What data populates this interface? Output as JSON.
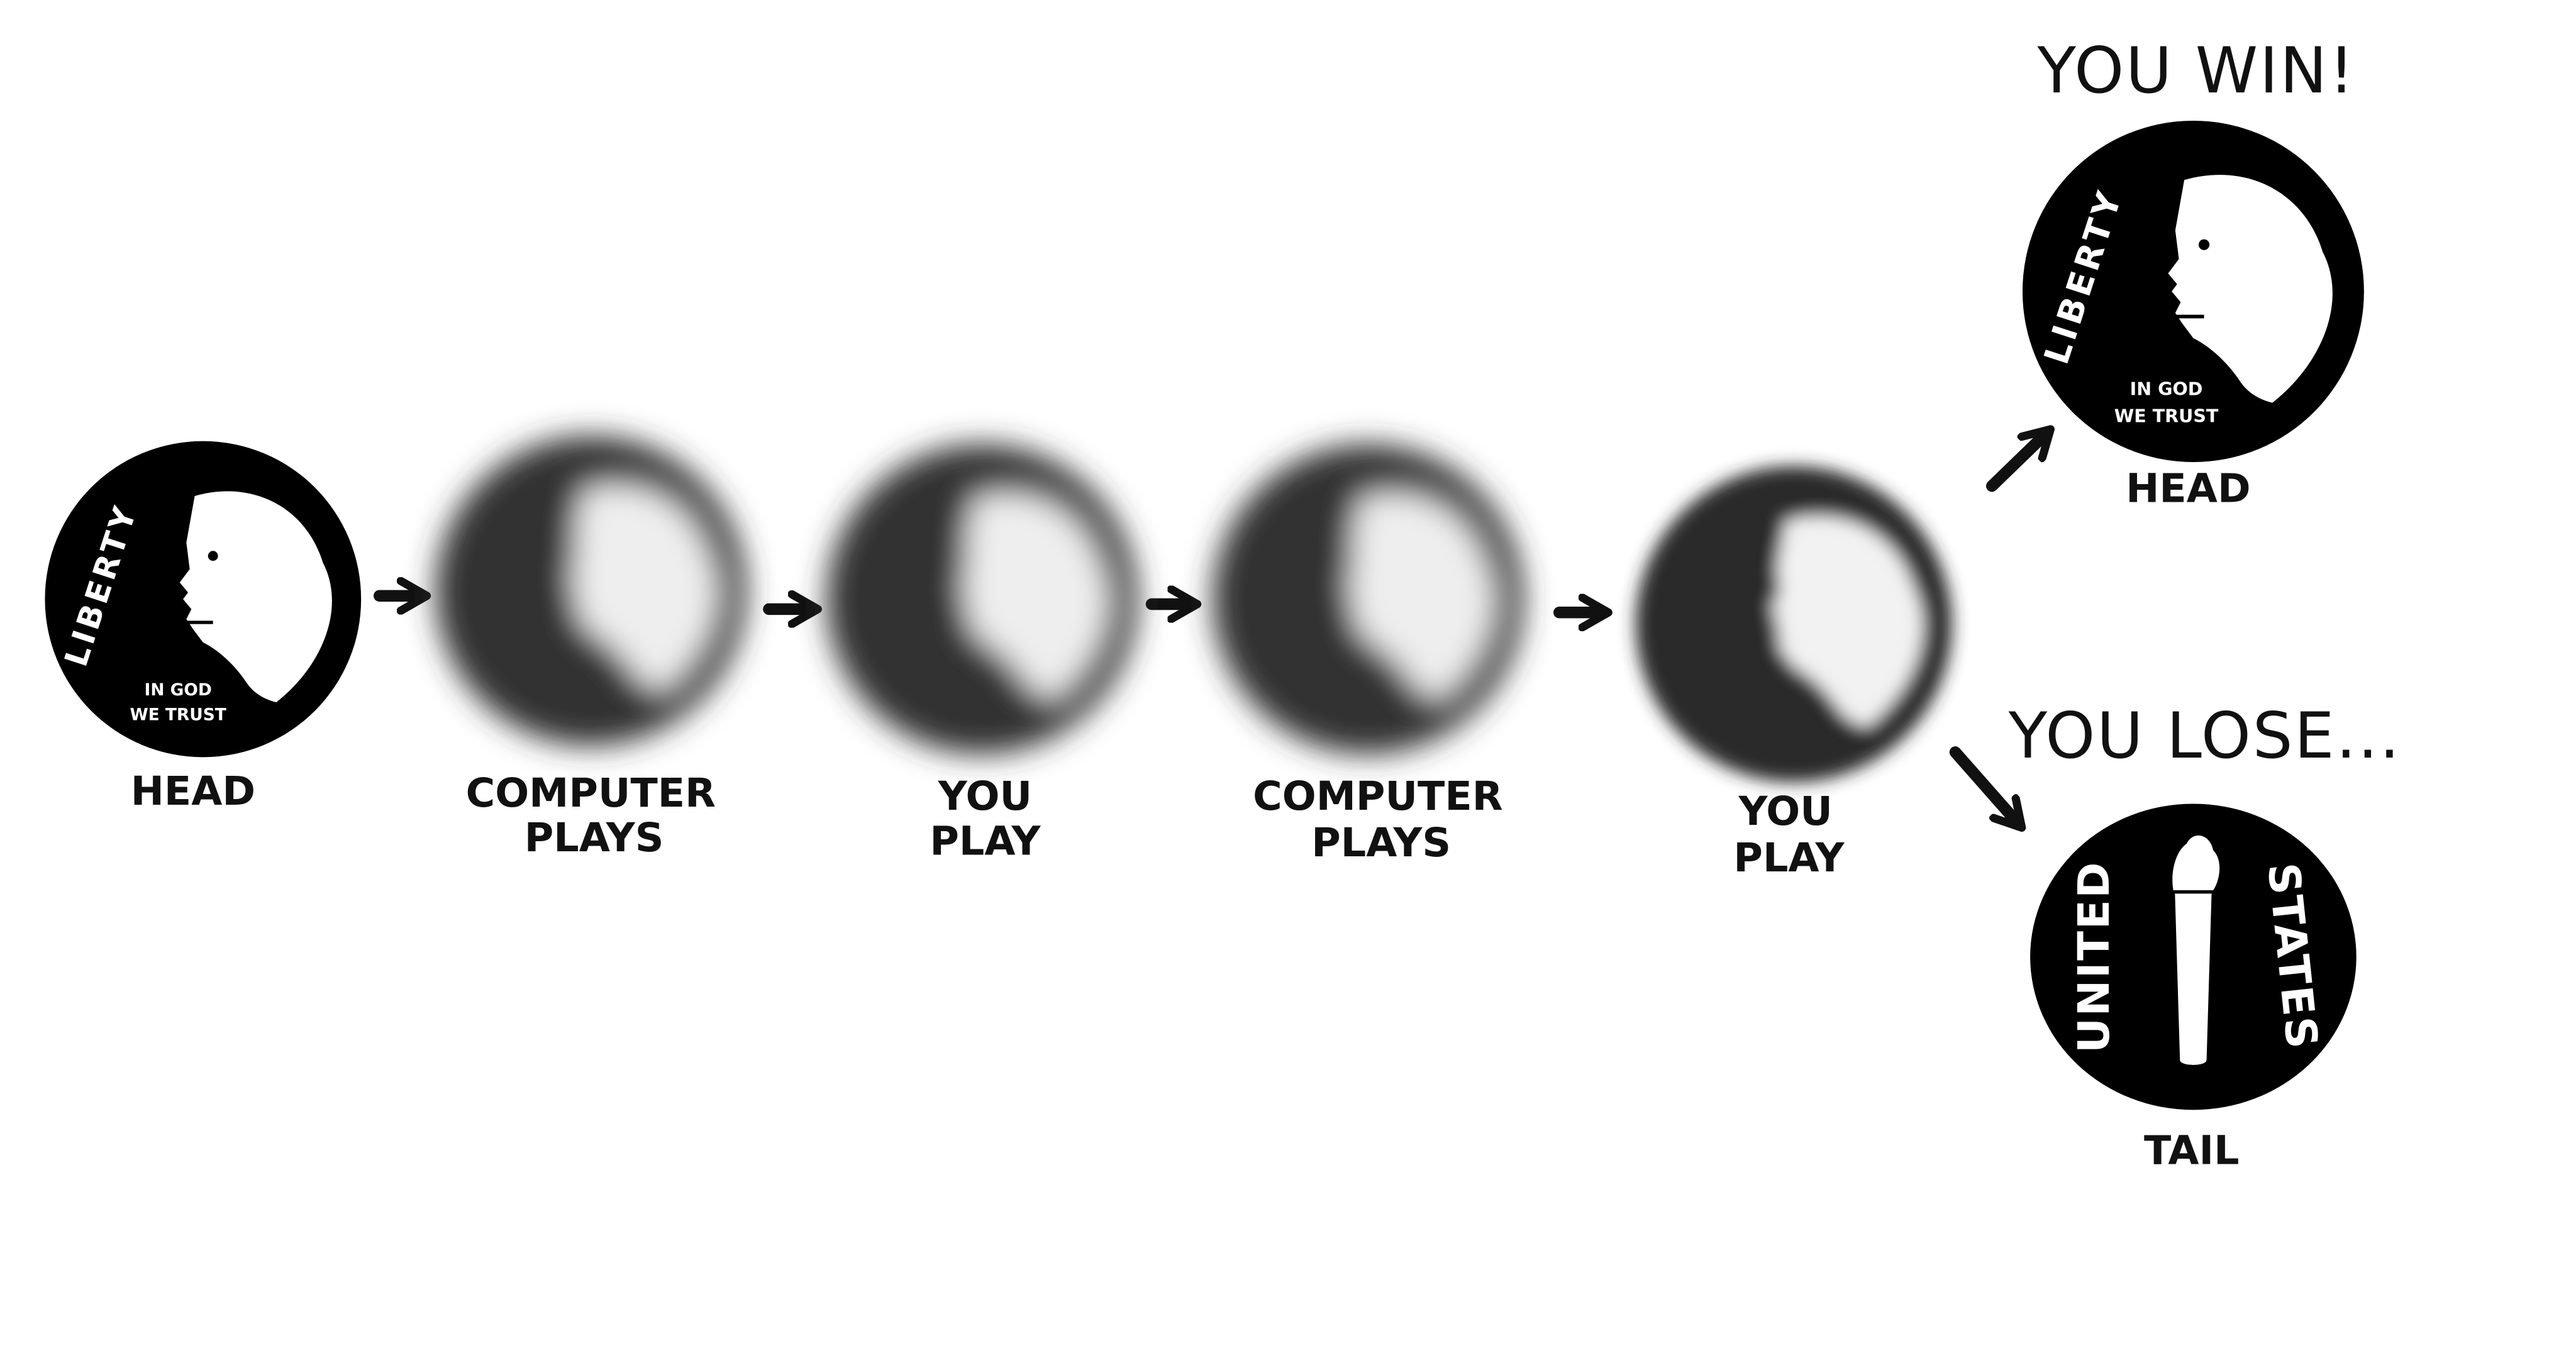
{
  "steps": [
    {
      "label": [
        "HEAD"
      ]
    },
    {
      "label": [
        "COMPUTER",
        "PLAYS"
      ]
    },
    {
      "label": [
        "YOU",
        "PLAY"
      ]
    },
    {
      "label": [
        "COMPUTER",
        "PLAYS"
      ]
    },
    {
      "label": [
        "YOU",
        "PLAY"
      ]
    }
  ],
  "outcomes": [
    {
      "title": "YOU WIN!",
      "label": "HEAD"
    },
    {
      "title": "YOU LOSE...",
      "label": "TAIL"
    }
  ],
  "coin": {
    "head": {
      "motto": "LIBERTY",
      "inscription": [
        "IN GOD",
        "WE TRUST"
      ]
    },
    "tail": {
      "left": "UNITED",
      "right": "STATES"
    }
  }
}
